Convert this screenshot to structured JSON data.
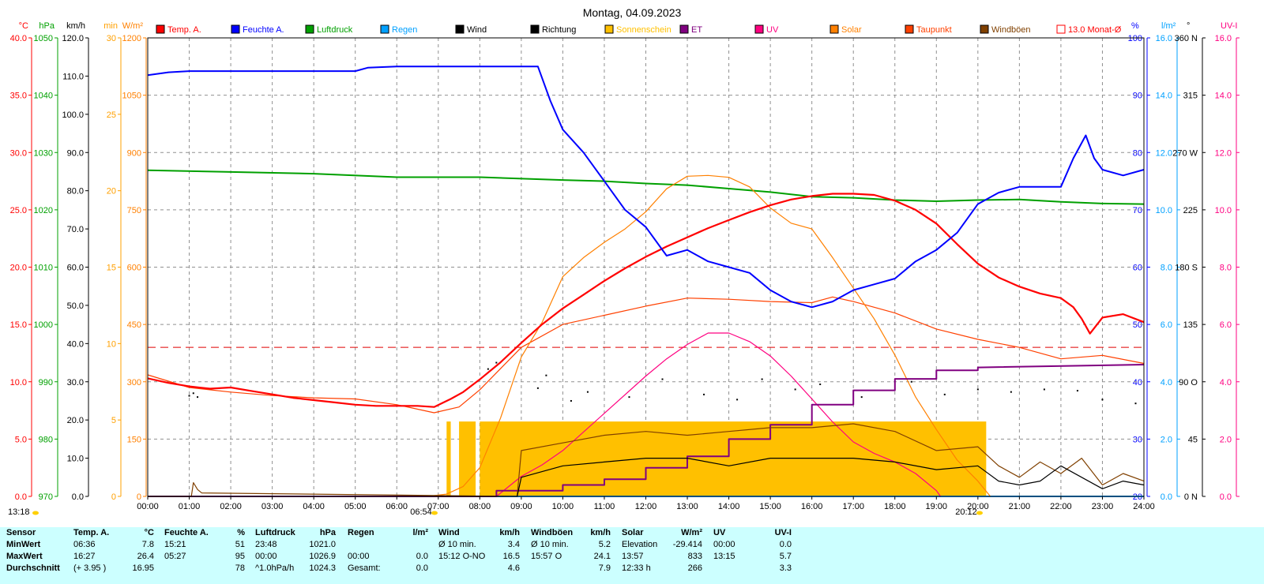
{
  "chart_data": {
    "type": "line",
    "title": "Montag, 04.09.2023",
    "x_ticks": [
      "00:00",
      "01:00",
      "02:00",
      "03:00",
      "04:00",
      "05:00",
      "06:00",
      "07:00",
      "08:00",
      "09:00",
      "10:00",
      "11:00",
      "12:00",
      "13:00",
      "14:00",
      "15:00",
      "16:00",
      "17:00",
      "18:00",
      "19:00",
      "20:00",
      "21:00",
      "22:00",
      "23:00",
      "24:00"
    ],
    "sunrise": "06:54",
    "sunset": "20:12",
    "start_marker": "13:18",
    "grid": true,
    "legend_position": "top",
    "axes_left": [
      {
        "unit": "°C",
        "color": "#ff0000",
        "ticks": [
          "40.0",
          "35.0",
          "30.0",
          "25.0",
          "20.0",
          "15.0",
          "10.0",
          "5.0",
          "0.0"
        ]
      },
      {
        "unit": "hPa",
        "color": "#00a000",
        "ticks": [
          "1050",
          "1040",
          "1030",
          "1020",
          "1010",
          "1000",
          "990",
          "980",
          "970"
        ]
      },
      {
        "unit": "km/h",
        "color": "#000000",
        "ticks": [
          "120.0",
          "110.0",
          "100.0",
          "90.0",
          "80.0",
          "70.0",
          "60.0",
          "50.0",
          "40.0",
          "30.0",
          "20.0",
          "10.0",
          "0.0"
        ]
      },
      {
        "unit": "min",
        "color": "#ffa000",
        "ticks": [
          "30",
          "25",
          "20",
          "15",
          "10",
          "5",
          "0"
        ]
      },
      {
        "unit": "W/m²",
        "color": "#ff8000",
        "ticks": [
          "1200",
          "1050",
          "900",
          "750",
          "600",
          "450",
          "300",
          "150",
          "0"
        ]
      }
    ],
    "axes_right": [
      {
        "unit": "%",
        "color": "#0000ff",
        "ticks": [
          "100",
          "90",
          "80",
          "70",
          "60",
          "50",
          "40",
          "30",
          "20"
        ]
      },
      {
        "unit": "l/m²",
        "color": "#00a0ff",
        "ticks": [
          "16.0",
          "14.0",
          "12.0",
          "10.0",
          "8.0",
          "6.0",
          "4.0",
          "2.0",
          "0.0"
        ]
      },
      {
        "unit": "°",
        "color": "#000000",
        "ticks": [
          "360 N",
          "315",
          "270 W",
          "225",
          "180 S",
          "135",
          "90 O",
          "45",
          "0 N"
        ]
      },
      {
        "unit": "UV-I",
        "color": "#ff0080",
        "ticks": [
          "16.0",
          "14.0",
          "12.0",
          "10.0",
          "8.0",
          "6.0",
          "4.0",
          "2.0",
          "0.0"
        ]
      }
    ],
    "legend": [
      {
        "label": "Temp. A.",
        "color": "#ff0000"
      },
      {
        "label": "Feuchte A.",
        "color": "#0000ff"
      },
      {
        "label": "Luftdruck",
        "color": "#00a000"
      },
      {
        "label": "Regen",
        "color": "#00a0ff"
      },
      {
        "label": "Wind",
        "color": "#000000"
      },
      {
        "label": "Richtung",
        "color": "#000000"
      },
      {
        "label": "Sonnenschein",
        "color": "#ffc000"
      },
      {
        "label": "ET",
        "color": "#800080"
      },
      {
        "label": "UV",
        "color": "#ff0080"
      },
      {
        "label": "Solar",
        "color": "#ff8000"
      },
      {
        "label": "Taupunkt",
        "color": "#ff4000"
      },
      {
        "label": "Windböen",
        "color": "#804000"
      },
      {
        "label": "13.0 Monat-Ø",
        "color": "#ff0000"
      }
    ],
    "monthly_avg_temp": 13.0,
    "series": [
      {
        "name": "Temp. A.",
        "color": "#ff0000",
        "axis": "°C",
        "x": [
          0,
          0.5,
          1,
          1.5,
          2,
          2.5,
          3,
          3.5,
          4,
          4.5,
          5,
          5.5,
          6,
          6.5,
          6.9,
          7.3,
          7.6,
          8,
          8.5,
          9,
          9.5,
          10,
          10.5,
          11,
          11.5,
          12,
          12.5,
          13,
          13.5,
          14,
          14.5,
          15,
          15.5,
          16,
          16.5,
          17,
          17.5,
          18,
          18.5,
          19,
          19.5,
          20,
          20.5,
          21,
          21.5,
          22,
          22.3,
          22.5,
          22.7,
          23,
          23.5,
          24
        ],
        "y": [
          10.3,
          9.9,
          9.6,
          9.4,
          9.5,
          9.2,
          8.9,
          8.6,
          8.4,
          8.2,
          8.0,
          7.9,
          7.9,
          7.9,
          7.8,
          8.5,
          9.1,
          10.2,
          11.7,
          13.4,
          15.0,
          16.4,
          17.6,
          18.8,
          19.9,
          20.9,
          21.8,
          22.6,
          23.4,
          24.1,
          24.8,
          25.4,
          25.9,
          26.2,
          26.4,
          26.4,
          26.3,
          25.8,
          25.0,
          23.8,
          22.0,
          20.3,
          19.1,
          18.3,
          17.7,
          17.3,
          16.5,
          15.5,
          14.2,
          15.6,
          15.9,
          15.2
        ]
      },
      {
        "name": "Feuchte A.",
        "color": "#0000ff",
        "axis": "%",
        "x": [
          0,
          0.5,
          1,
          2,
          3,
          4,
          5,
          5.3,
          6,
          7,
          8,
          9,
          9.4,
          9.7,
          10,
          10.5,
          11,
          11.5,
          12,
          12.5,
          13,
          13.5,
          14,
          14.5,
          15,
          15.5,
          16,
          16.5,
          17,
          17.5,
          18,
          18.5,
          19,
          19.5,
          20,
          20.5,
          21,
          21.5,
          22,
          22.3,
          22.6,
          22.8,
          23,
          23.5,
          24
        ],
        "y": [
          93.5,
          94,
          94.2,
          94.2,
          94.2,
          94.2,
          94.2,
          94.8,
          95,
          95,
          95,
          95,
          95,
          89,
          84,
          80,
          75,
          70,
          67,
          62,
          63,
          61,
          60,
          59,
          56,
          54,
          53,
          54,
          56,
          57,
          58,
          61,
          63,
          66,
          71,
          73,
          74,
          74,
          74,
          79,
          83,
          79,
          77,
          76,
          77
        ]
      },
      {
        "name": "Luftdruck",
        "color": "#00a000",
        "axis": "hPa",
        "x": [
          0,
          2,
          4,
          6,
          8,
          10,
          11,
          12,
          13,
          14,
          15,
          16,
          17,
          18,
          19,
          20,
          21,
          22,
          23,
          24
        ],
        "y": [
          1026.9,
          1026.6,
          1026.3,
          1025.7,
          1025.7,
          1025.2,
          1025.0,
          1024.6,
          1024.3,
          1023.7,
          1023.1,
          1022.3,
          1022.1,
          1021.7,
          1021.5,
          1021.7,
          1021.8,
          1021.4,
          1021.1,
          1021.0
        ]
      },
      {
        "name": "Solar",
        "color": "#ff8000",
        "axis": "W/m²",
        "x": [
          0,
          6.5,
          6.9,
          7.2,
          7.6,
          8,
          8.5,
          9,
          9.5,
          10,
          10.5,
          11,
          11.5,
          12,
          12.5,
          13,
          13.5,
          14,
          14.5,
          15,
          15.5,
          16,
          16.5,
          17,
          17.5,
          18,
          18.5,
          19,
          19.5,
          20,
          20.3
        ],
        "y": [
          0,
          0,
          2,
          6,
          26,
          75,
          205,
          365,
          455,
          575,
          625,
          665,
          700,
          745,
          805,
          838,
          840,
          835,
          810,
          755,
          715,
          700,
          625,
          545,
          465,
          370,
          260,
          175,
          95,
          40,
          0
        ]
      },
      {
        "name": "Taupunkt",
        "color": "#ff4000",
        "axis": "°C",
        "x": [
          0,
          1,
          2,
          3,
          4,
          5,
          6,
          6.9,
          7.5,
          8,
          9,
          10,
          11,
          12,
          13,
          14,
          15,
          16,
          16.5,
          17,
          18,
          19,
          20,
          21,
          22,
          23,
          24
        ],
        "y": [
          10.6,
          9.5,
          9.1,
          8.8,
          8.6,
          8.5,
          8.0,
          7.3,
          7.8,
          9.3,
          13.0,
          15.0,
          15.8,
          16.6,
          17.3,
          17.2,
          17.0,
          16.9,
          17.4,
          17.0,
          16.0,
          14.6,
          13.7,
          13.0,
          12.0,
          12.3,
          11.6
        ]
      },
      {
        "name": "UV",
        "color": "#ff0080",
        "axis": "UV-I",
        "x": [
          0,
          8.4,
          9,
          9.5,
          10,
          11,
          12,
          12.5,
          13,
          13.5,
          14,
          14.5,
          15,
          15.5,
          16,
          16.5,
          17,
          17.5,
          18,
          18.5,
          19,
          19.1
        ],
        "y": [
          0,
          0,
          0.7,
          1.1,
          1.6,
          2.9,
          4.2,
          4.8,
          5.3,
          5.7,
          5.7,
          5.4,
          4.9,
          4.2,
          3.4,
          2.6,
          1.9,
          1.5,
          1.2,
          0.8,
          0.2,
          0
        ]
      },
      {
        "name": "ET",
        "color": "#800080",
        "axis": "l/m²",
        "x": [
          0,
          8.4,
          8.4,
          10,
          10,
          11,
          11,
          12,
          12,
          13,
          13,
          14,
          14,
          15,
          15,
          16,
          16,
          17,
          17,
          18,
          18,
          19,
          19,
          20,
          20,
          24
        ],
        "y": [
          0,
          0,
          0.2,
          0.2,
          0.4,
          0.4,
          0.6,
          0.6,
          1.0,
          1.0,
          1.4,
          1.4,
          2.0,
          2.0,
          2.5,
          2.5,
          3.2,
          3.2,
          3.7,
          3.7,
          4.1,
          4.1,
          4.4,
          4.4,
          4.5,
          4.6
        ]
      },
      {
        "name": "Wind",
        "color": "#000000",
        "axis": "km/h",
        "x": [
          0,
          8.9,
          9,
          10,
          11,
          12,
          13,
          14,
          15,
          16,
          17,
          18,
          19,
          20,
          20.5,
          21,
          21.5,
          22,
          22.5,
          23,
          23.5,
          24
        ],
        "y": [
          0,
          0,
          5,
          8,
          9,
          10,
          10,
          8,
          10,
          10,
          10,
          9,
          7,
          8,
          4,
          3,
          4,
          8,
          5,
          2,
          4,
          3
        ]
      },
      {
        "name": "Windböen",
        "color": "#804000",
        "axis": "km/h",
        "x": [
          0,
          1.05,
          1.1,
          1.2,
          1.3,
          8.9,
          9,
          10,
          11,
          12,
          13,
          14,
          15,
          16,
          17,
          18,
          19,
          20,
          20.5,
          21,
          21.5,
          22,
          22.5,
          23,
          23.5,
          24
        ],
        "y": [
          0,
          0,
          3.6,
          1.8,
          0.9,
          0,
          12,
          14,
          16,
          17,
          16,
          17,
          18,
          18,
          19,
          17,
          12,
          13,
          8,
          5,
          9,
          6,
          10,
          3,
          6,
          4
        ]
      },
      {
        "name": "Regen",
        "color": "#00a0ff",
        "axis": "l/m²",
        "x": [
          0,
          24
        ],
        "y": [
          0,
          0
        ]
      }
    ],
    "sunshine_blocks": [
      [
        7.2,
        7.3
      ],
      [
        7.5,
        7.9
      ],
      [
        8.0,
        20.2
      ]
    ],
    "sunshine_level_min": 4.9,
    "direction_series": {
      "name": "Richtung",
      "color": "#000000",
      "axis": "°",
      "x": [
        1.0,
        1.1,
        1.2,
        8.2,
        8.4,
        9.4,
        9.6,
        10.2,
        10.6,
        11.6,
        12.4,
        13.4,
        14.2,
        14.8,
        15.6,
        16.2,
        17.2,
        18.4,
        19.2,
        20.0,
        20.8,
        21.6,
        22.4,
        23.0,
        23.8
      ],
      "y": [
        79,
        81,
        78,
        100,
        105,
        85,
        95,
        75,
        82,
        78,
        92,
        80,
        76,
        92,
        84,
        88,
        78,
        90,
        80,
        84,
        82,
        84,
        83,
        76,
        73
      ]
    }
  },
  "stats": {
    "headers": [
      {
        "name": "Sensor"
      },
      {
        "name": "Temp. A.",
        "unit": "°C"
      },
      {
        "name": "Feuchte A.",
        "unit": "%"
      },
      {
        "name": "Luftdruck",
        "unit": "hPa"
      },
      {
        "name": "Regen",
        "unit": "l/m²"
      },
      {
        "name": "Wind",
        "unit": "km/h"
      },
      {
        "name": "Windböen",
        "unit": "km/h"
      },
      {
        "name": "Solar",
        "unit": "W/m²"
      },
      {
        "name": "UV",
        "unit": "UV-I"
      }
    ],
    "rows": [
      {
        "label": "MinWert",
        "cells": [
          [
            "06:36",
            "7.8"
          ],
          [
            "15:21",
            "51"
          ],
          [
            "23:48",
            "1021.0"
          ],
          [
            "",
            ""
          ],
          [
            "Ø 10 min.",
            "3.4"
          ],
          [
            "Ø 10 min.",
            "5.2"
          ],
          [
            "Elevation",
            "-29.414"
          ],
          [
            "00:00",
            "0.0"
          ]
        ]
      },
      {
        "label": "MaxWert",
        "cells": [
          [
            "16:27",
            "26.4"
          ],
          [
            "05:27",
            "95"
          ],
          [
            "00:00",
            "1026.9"
          ],
          [
            "00:00",
            "0.0"
          ],
          [
            "15:12 O-NO",
            "16.5"
          ],
          [
            "15:57 O",
            "24.1"
          ],
          [
            "13:57",
            "833"
          ],
          [
            "13:15",
            "5.7"
          ]
        ]
      },
      {
        "label": "Durchschnitt",
        "cells": [
          [
            "(+ 3.95 )",
            "16.95"
          ],
          [
            "",
            "78"
          ],
          [
            "^1.0hPa/h",
            "1024.3"
          ],
          [
            "Gesamt:",
            "0.0"
          ],
          [
            "",
            "4.6"
          ],
          [
            "",
            "7.9"
          ],
          [
            "12:33 h",
            "266"
          ],
          [
            "",
            "3.3"
          ]
        ]
      }
    ]
  }
}
